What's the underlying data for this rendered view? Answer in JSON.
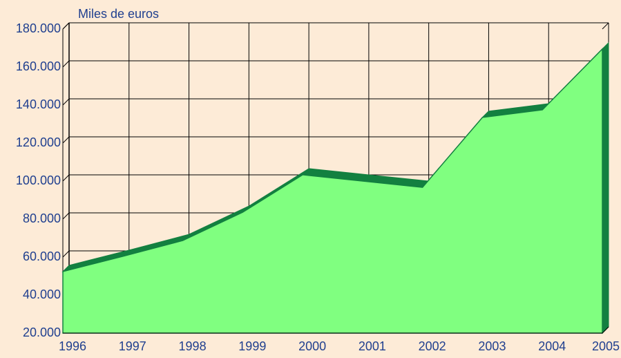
{
  "chart_data": {
    "type": "area3d",
    "y_axis_label": "Miles de euros",
    "categories": [
      "1996",
      "1997",
      "1998",
      "1999",
      "2000",
      "2001",
      "2002",
      "2003",
      "2004",
      "2005"
    ],
    "values": [
      52400,
      60400,
      68700,
      83600,
      103300,
      100000,
      96700,
      133500,
      137500,
      169500
    ],
    "color": "#80ff80",
    "edge_color": "#138040",
    "ylim": [
      20000,
      180000
    ],
    "yticks": [
      {
        "value": 20000,
        "label": "20.000"
      },
      {
        "value": 40000,
        "label": "40.000"
      },
      {
        "value": 60000,
        "label": "60.000"
      },
      {
        "value": 80000,
        "label": "80.000"
      },
      {
        "value": 100000,
        "label": "100.000"
      },
      {
        "value": 120000,
        "label": "120.000"
      },
      {
        "value": 140000,
        "label": "140.000"
      },
      {
        "value": 160000,
        "label": "160.000"
      },
      {
        "value": 180000,
        "label": "180.000"
      }
    ],
    "grid": true
  }
}
